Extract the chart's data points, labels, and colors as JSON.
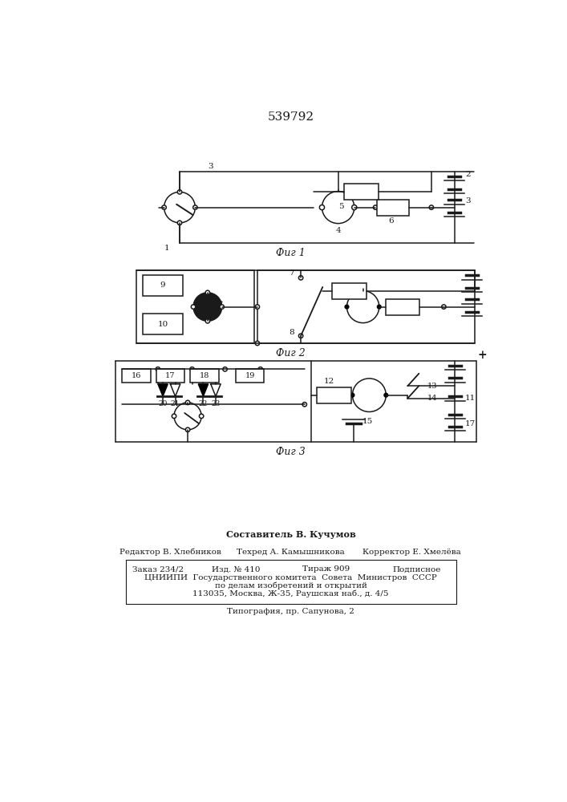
{
  "title": "539792",
  "bg_color": "#ffffff",
  "line_color": "#1a1a1a",
  "fig1_label": "Фиг 1",
  "fig2_label": "Фиг 2",
  "fig3_label": "Фиг 3",
  "footer_lines": [
    "Составитель В. Кучумов",
    "Редактор В. Хлебников",
    "Техред А. Камышникова",
    "Корректор Е. Хмелёва",
    "Заказ 234/2",
    "Изд. № 410",
    "Тираж 909",
    "Подписное",
    "ЦНИИПИ  Государственного комитета  Совета  Министров  СССР",
    "по делам изобретений и открытий",
    "113035, Москва, Ж-35, Раушская наб., д. 4/5",
    "Типография, пр. Сапунова, 2"
  ]
}
